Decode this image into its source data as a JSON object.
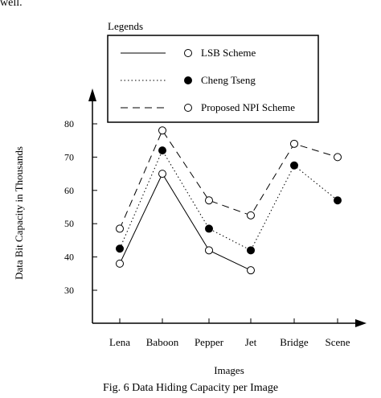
{
  "leading_text": "well.",
  "caption": "Fig. 6 Data Hiding Capacity per Image",
  "chart_data": {
    "type": "line",
    "categories": [
      "Lena",
      "Baboon",
      "Pepper",
      "Jet",
      "Bridge",
      "Scene"
    ],
    "xlabel": "Images",
    "ylabel": "Data Bit Capacity in Thousands",
    "yticks": [
      30,
      40,
      50,
      60,
      70,
      80
    ],
    "ylim": [
      21,
      80
    ],
    "grid": false,
    "legend_title": "Legends",
    "legend_position": "top",
    "series": [
      {
        "name": "LSB Scheme",
        "line": "solid",
        "marker": "open",
        "values": [
          38,
          65,
          42,
          36,
          null,
          null
        ]
      },
      {
        "name": "Cheng Tseng",
        "line": "dotted",
        "marker": "filled",
        "values": [
          42.5,
          72,
          48.5,
          42,
          67.5,
          57
        ]
      },
      {
        "name": "Proposed NPI Scheme",
        "line": "dashed",
        "marker": "open",
        "values": [
          48.5,
          78,
          57,
          52.5,
          74,
          70
        ]
      }
    ]
  }
}
